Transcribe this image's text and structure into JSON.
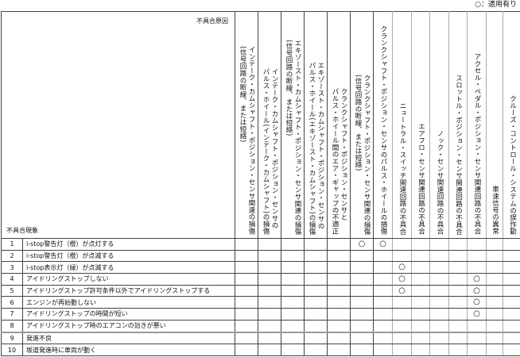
{
  "legend": "○：適用有り",
  "header": {
    "cause_label": "不具合原因",
    "symptom_label": "不具合現象"
  },
  "columns": [
    {
      "lines": [
        "インテーク・カムシャフト・ポジション・センサ関連の損傷",
        "(信号回路の断線、または短絡)"
      ]
    },
    {
      "lines": [
        "インテーク・カムシャフト・ポジション・センサの",
        "パルス・ホイール(インテーク・カムシャフト)の損傷"
      ]
    },
    {
      "lines": [
        "エキゾースト・カムシャフト・ポジション・センサ関連の損傷",
        "(信号回路の断線、または短絡)"
      ]
    },
    {
      "lines": [
        "エキゾースト・カムシャフト・ポジション・センサの",
        "パルス・ホイール(エキゾースト・カムシャフト)の損傷"
      ]
    },
    {
      "lines": [
        "クランクシャフト・ポジション・センサと",
        "パルス・ホイール間のエア・ギャップの不適正"
      ]
    },
    {
      "lines": [
        "クランクシャフト・ポジション・センサ関連の損傷",
        "(信号回路の断線、または短絡)"
      ]
    },
    {
      "lines": [
        "クランクシャフト・ポジション・センサのパルス・ホイールの損傷"
      ]
    },
    {
      "lines": [
        "ニュートラル・スイッチ関連回路の不具合"
      ]
    },
    {
      "lines": [
        "エアフロ・センサ関連回路の不具合"
      ]
    },
    {
      "lines": [
        "ノック・センサ関連回路の不具合"
      ]
    },
    {
      "lines": [
        "スロットル・ポジション・センサ関連回路の不具合"
      ]
    },
    {
      "lines": [
        "アクセル・ペダル・ポジション・センサ関連回路の不具合"
      ]
    },
    {
      "lines": [
        "車速信号の異常"
      ]
    },
    {
      "lines": [
        "クルーズ・コントロール・システムの誤作動"
      ]
    }
  ],
  "mark_symbol": "○",
  "rows": [
    {
      "num": "1",
      "text": "i-stop警告灯（橙）が点灯する",
      "marks": [
        6,
        7
      ]
    },
    {
      "num": "2",
      "text": "i-stop警告灯（橙）が点滅する",
      "marks": []
    },
    {
      "num": "3",
      "text": "i-stop表示灯（緑）が点滅する",
      "marks": [
        8
      ]
    },
    {
      "num": "4",
      "text": "アイドリングストップしない",
      "marks": [
        8,
        12
      ]
    },
    {
      "num": "5",
      "text": "アイドリングストップ許可条件以外でアイドリングストップする",
      "marks": [
        8,
        12
      ]
    },
    {
      "num": "6",
      "text": "エンジンが再始動しない",
      "marks": [
        12
      ]
    },
    {
      "num": "7",
      "text": "アイドリングストップの時間が短い",
      "marks": [
        12
      ]
    },
    {
      "num": "8",
      "text": "アイドリングストップ時のエアコンの効きが悪い",
      "marks": []
    },
    {
      "num": "9",
      "text": "発進不良",
      "marks": []
    },
    {
      "num": "10",
      "text": "坂道発進時に車両が動く",
      "marks": []
    }
  ]
}
